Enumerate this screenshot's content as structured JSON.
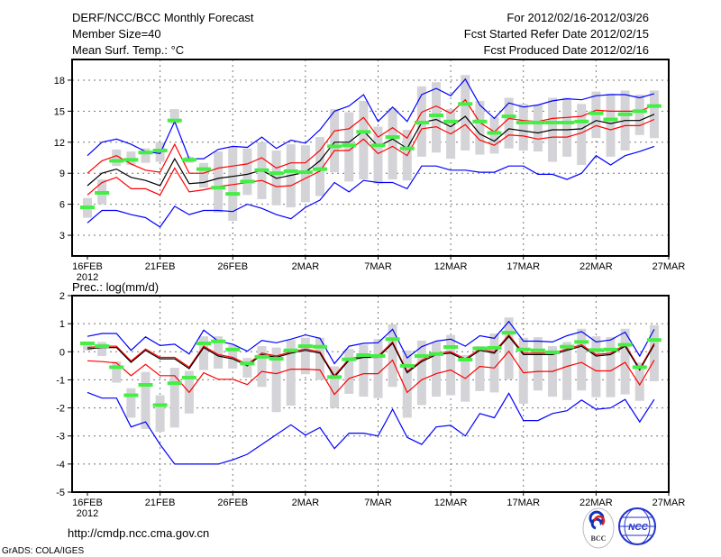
{
  "header": {
    "title": "DERF/NCC/BCC Monthly Forecast",
    "member_size": "Member Size=40",
    "period": "For 2012/02/16-2012/03/26",
    "refer_date": "Fcst Started Refer Date 2012/02/15",
    "produced_date": "Fcst Produced Date 2012/02/16"
  },
  "footer": {
    "url": "http://cmdp.ncc.cma.gov.cn",
    "grads": "GrADS: COLA/IGES",
    "logo_bcc": "BCC",
    "logo_ncc": "NCC"
  },
  "colors": {
    "envelope": "#0000ff",
    "spread": "#ff0000",
    "mean": "#000000",
    "obs": "#44ee44",
    "bar": "#d4d4d8"
  },
  "chart_data": [
    {
      "type": "line",
      "title": "Mean Surf. Temp.: °C",
      "x_start": "2012-02-16",
      "xtick_labels": [
        "16FEB",
        "21FEB",
        "26FEB",
        "2MAR",
        "7MAR",
        "12MAR",
        "17MAR",
        "22MAR",
        "27MAR"
      ],
      "xtick_year": "2012",
      "ylim": [
        1,
        20
      ],
      "yticks": [
        3,
        6,
        9,
        12,
        15,
        18
      ],
      "grid": true,
      "series": [
        {
          "name": "max",
          "color": "#0000ff",
          "values": [
            10.7,
            12.0,
            12.3,
            11.8,
            11.1,
            10.9,
            14.0,
            10.4,
            10.4,
            11.3,
            11.6,
            11.5,
            12.5,
            11.4,
            12.2,
            11.9,
            13.2,
            15.0,
            15.5,
            16.6,
            14.0,
            15.4,
            14.0,
            16.6,
            17.2,
            16.5,
            18.1,
            15.6,
            14.3,
            15.8,
            15.4,
            15.6,
            16.0,
            16.2,
            16.1,
            16.5,
            16.6,
            16.6,
            16.3,
            16.7
          ]
        },
        {
          "name": "upper",
          "color": "#ff0000",
          "values": [
            9.0,
            10.2,
            10.7,
            9.9,
            9.3,
            9.1,
            11.8,
            9.0,
            9.0,
            9.5,
            9.7,
            9.9,
            10.5,
            9.5,
            10.0,
            10.0,
            11.2,
            13.1,
            13.3,
            14.4,
            12.5,
            13.4,
            12.4,
            14.9,
            15.5,
            14.8,
            16.1,
            13.9,
            13.0,
            14.3,
            14.1,
            14.0,
            14.3,
            14.4,
            14.5,
            15.1,
            15.0,
            15.0,
            15.0,
            15.6
          ]
        },
        {
          "name": "mean",
          "color": "#000000",
          "values": [
            7.8,
            9.0,
            9.4,
            8.6,
            8.3,
            7.8,
            10.4,
            8.0,
            8.1,
            8.5,
            8.7,
            8.9,
            9.3,
            8.5,
            8.8,
            9.1,
            10.2,
            12.0,
            12.0,
            13.1,
            11.6,
            12.3,
            11.4,
            13.9,
            14.2,
            13.5,
            14.5,
            12.8,
            12.1,
            13.3,
            13.1,
            12.9,
            13.2,
            13.2,
            13.3,
            14.1,
            13.8,
            14.1,
            14.1,
            14.7
          ]
        },
        {
          "name": "lower",
          "color": "#ff0000",
          "values": [
            6.9,
            8.1,
            8.6,
            7.5,
            7.5,
            6.9,
            9.5,
            7.2,
            7.4,
            7.7,
            7.9,
            8.1,
            8.3,
            7.7,
            7.8,
            8.5,
            9.2,
            11.2,
            11.2,
            12.3,
            10.9,
            11.6,
            10.7,
            13.3,
            13.5,
            12.8,
            13.7,
            12.2,
            11.7,
            12.7,
            12.6,
            12.3,
            12.5,
            12.5,
            12.9,
            13.6,
            13.2,
            13.6,
            13.6,
            14.2
          ]
        },
        {
          "name": "min",
          "color": "#0000ff",
          "values": [
            4.2,
            5.4,
            5.4,
            5.0,
            4.7,
            3.8,
            5.8,
            5.0,
            5.4,
            5.4,
            5.3,
            6.0,
            5.6,
            5.0,
            4.6,
            5.7,
            6.4,
            8.1,
            7.2,
            8.3,
            8.1,
            8.1,
            7.5,
            9.7,
            9.7,
            9.3,
            9.3,
            9.1,
            9.1,
            9.7,
            9.7,
            8.9,
            8.9,
            8.4,
            9.0,
            10.7,
            9.8,
            10.7,
            11.1,
            11.6
          ]
        }
      ],
      "obs": [
        5.7,
        7.1,
        10.2,
        10.3,
        11.0,
        11.2,
        14.1,
        10.3,
        9.4,
        7.6,
        7.0,
        8.2,
        9.3,
        9.0,
        9.2,
        9.1,
        9.4,
        11.6,
        11.7,
        13.0,
        11.7,
        12.5,
        11.4,
        13.9,
        14.6,
        14.0,
        15.7,
        14.0,
        12.9,
        14.5,
        13.9,
        13.9,
        13.9,
        13.9,
        14.0,
        14.8,
        14.2,
        14.7,
        15.0,
        15.5
      ],
      "bars": [
        [
          4.7,
          6.6
        ],
        [
          6.0,
          8.4
        ],
        [
          9.7,
          11.3
        ],
        [
          9.8,
          11.1
        ],
        [
          10.0,
          11.4
        ],
        [
          10.1,
          12.0
        ],
        [
          13.8,
          15.2
        ],
        [
          10.0,
          10.6
        ],
        [
          7.6,
          10.0
        ],
        [
          5.2,
          11.1
        ],
        [
          4.4,
          11.5
        ],
        [
          6.9,
          11.4
        ],
        [
          6.5,
          12.0
        ],
        [
          5.9,
          11.2
        ],
        [
          5.7,
          11.8
        ],
        [
          6.2,
          11.7
        ],
        [
          6.8,
          12.5
        ],
        [
          9.1,
          15.2
        ],
        [
          8.2,
          14.9
        ],
        [
          8.4,
          16.0
        ],
        [
          8.0,
          13.5
        ],
        [
          8.4,
          15.3
        ],
        [
          8.3,
          13.2
        ],
        [
          10.6,
          17.4
        ],
        [
          11.0,
          17.8
        ],
        [
          10.4,
          15.2
        ],
        [
          11.2,
          18.5
        ],
        [
          10.8,
          16.0
        ],
        [
          10.9,
          14.4
        ],
        [
          11.4,
          16.3
        ],
        [
          11.2,
          15.7
        ],
        [
          11.1,
          15.6
        ],
        [
          10.1,
          16.3
        ],
        [
          10.6,
          16.3
        ],
        [
          9.8,
          15.7
        ],
        [
          12.4,
          16.9
        ],
        [
          10.6,
          16.7
        ],
        [
          11.2,
          17.0
        ],
        [
          12.7,
          16.6
        ],
        [
          12.4,
          17.0
        ]
      ]
    },
    {
      "type": "line",
      "title": "Prec.: log(mm/d)",
      "x_start": "2012-02-16",
      "xtick_labels": [
        "16FEB",
        "21FEB",
        "26FEB",
        "2MAR",
        "7MAR",
        "12MAR",
        "17MAR",
        "22MAR",
        "27MAR"
      ],
      "xtick_year": "2012",
      "ylim": [
        -5,
        2
      ],
      "yticks": [
        -5,
        -4,
        -3,
        -2,
        -1,
        0,
        1,
        2
      ],
      "grid": true,
      "series": [
        {
          "name": "max",
          "color": "#0000ff",
          "values": [
            0.55,
            0.65,
            0.65,
            0.05,
            0.53,
            0.22,
            0.27,
            -0.08,
            0.77,
            0.38,
            0.27,
            0.02,
            0.4,
            0.32,
            0.45,
            0.6,
            0.48,
            -0.42,
            0.2,
            0.3,
            0.32,
            0.8,
            -0.22,
            0.18,
            0.38,
            0.45,
            0.2,
            0.57,
            0.48,
            1.08,
            0.38,
            0.38,
            0.35,
            0.57,
            0.72,
            0.35,
            0.42,
            0.7,
            -0.15,
            0.8
          ]
        },
        {
          "name": "upper",
          "color": "#ff0000",
          "values": [
            0.15,
            0.2,
            0.2,
            -0.33,
            0.1,
            -0.2,
            -0.2,
            -0.55,
            0.2,
            -0.1,
            -0.2,
            -0.45,
            -0.05,
            -0.15,
            0.0,
            0.1,
            0.0,
            -0.85,
            -0.25,
            -0.15,
            -0.15,
            0.35,
            -0.7,
            -0.3,
            -0.05,
            0.0,
            -0.25,
            0.1,
            0.0,
            0.6,
            -0.05,
            -0.05,
            -0.05,
            0.1,
            0.25,
            -0.1,
            -0.05,
            0.25,
            -0.6,
            0.3
          ]
        },
        {
          "name": "mean",
          "color": "#000000",
          "values": [
            0.1,
            0.15,
            0.15,
            -0.38,
            0.05,
            -0.25,
            -0.25,
            -0.6,
            0.15,
            -0.15,
            -0.25,
            -0.5,
            -0.1,
            -0.2,
            -0.05,
            0.05,
            -0.05,
            -0.9,
            -0.3,
            -0.2,
            -0.2,
            0.3,
            -0.75,
            -0.35,
            -0.1,
            -0.05,
            -0.3,
            0.05,
            -0.05,
            0.55,
            -0.1,
            -0.1,
            -0.1,
            0.05,
            0.2,
            -0.15,
            -0.1,
            0.2,
            -0.65,
            0.25
          ]
        },
        {
          "name": "lower",
          "color": "#ff0000",
          "values": [
            -0.32,
            -0.35,
            -0.4,
            -0.85,
            -0.45,
            -0.85,
            -0.85,
            -1.45,
            -0.75,
            -0.98,
            -0.98,
            -1.17,
            -0.7,
            -0.78,
            -0.62,
            -0.62,
            -0.65,
            -1.52,
            -0.95,
            -0.78,
            -0.78,
            -0.3,
            -1.45,
            -1.0,
            -0.78,
            -0.65,
            -0.95,
            -0.52,
            -0.58,
            0.02,
            -0.75,
            -0.7,
            -0.7,
            -0.52,
            -0.38,
            -0.68,
            -0.68,
            -0.38,
            -1.18,
            -0.3
          ]
        },
        {
          "name": "min",
          "color": "#0000ff",
          "values": [
            -1.45,
            -1.65,
            -1.65,
            -2.68,
            -2.5,
            -3.3,
            -4,
            -4,
            -4,
            -4,
            -3.85,
            -3.65,
            -3.3,
            -2.95,
            -2.6,
            -2.97,
            -2.7,
            -3.45,
            -2.9,
            -2.9,
            -3.0,
            -2.05,
            -3.05,
            -3.3,
            -2.68,
            -2.62,
            -3.0,
            -2.2,
            -2.35,
            -1.48,
            -2.45,
            -2.45,
            -2.2,
            -2.1,
            -1.72,
            -2.05,
            -2.0,
            -1.7,
            -2.5,
            -1.7
          ]
        }
      ],
      "obs": [
        0.3,
        0.2,
        -0.55,
        -1.55,
        -1.18,
        -1.9,
        -1.12,
        -0.92,
        0.3,
        0.37,
        0.08,
        -0.42,
        -0.18,
        -0.25,
        0.05,
        0.2,
        0.18,
        -0.9,
        -0.27,
        -0.12,
        -0.15,
        0.45,
        -0.5,
        -0.15,
        -0.08,
        0.17,
        -0.28,
        0.12,
        0.14,
        0.68,
        0.08,
        0.05,
        -0.02,
        0.18,
        0.35,
        0.06,
        0.08,
        0.25,
        -0.55,
        0.42
      ],
      "bars": [
        [
          0.05,
          0.35
        ],
        [
          -0.15,
          0.35
        ],
        [
          -1.1,
          -0.35
        ],
        [
          -2.35,
          -1.3
        ],
        [
          -2.75,
          -0.72
        ],
        [
          -2.85,
          -1.55
        ],
        [
          -2.7,
          -0.57
        ],
        [
          -2.2,
          -0.68
        ],
        [
          -0.65,
          0.55
        ],
        [
          -0.6,
          0.55
        ],
        [
          -0.6,
          0.25
        ],
        [
          -0.92,
          -0.22
        ],
        [
          -1.25,
          0.2
        ],
        [
          -2.15,
          0.15
        ],
        [
          -1.92,
          0.42
        ],
        [
          -0.8,
          0.5
        ],
        [
          -1.0,
          0.5
        ],
        [
          -2.0,
          -0.52
        ],
        [
          -1.5,
          0.1
        ],
        [
          -1.6,
          0.25
        ],
        [
          -1.65,
          0.45
        ],
        [
          -1.25,
          0.98
        ],
        [
          -2.35,
          0.05
        ],
        [
          -1.9,
          0.4
        ],
        [
          -1.6,
          0.35
        ],
        [
          -1.55,
          0.6
        ],
        [
          -1.78,
          -0.12
        ],
        [
          -1.4,
          0.2
        ],
        [
          -1.45,
          0.65
        ],
        [
          -0.98,
          1.22
        ],
        [
          -1.85,
          0.5
        ],
        [
          -1.38,
          0.52
        ],
        [
          -1.6,
          0.2
        ],
        [
          -1.72,
          0.35
        ],
        [
          -1.38,
          0.82
        ],
        [
          -1.62,
          0.55
        ],
        [
          -1.62,
          0.52
        ],
        [
          -1.52,
          0.82
        ],
        [
          -1.75,
          -0.38
        ],
        [
          -1.05,
          0.95
        ]
      ]
    }
  ]
}
